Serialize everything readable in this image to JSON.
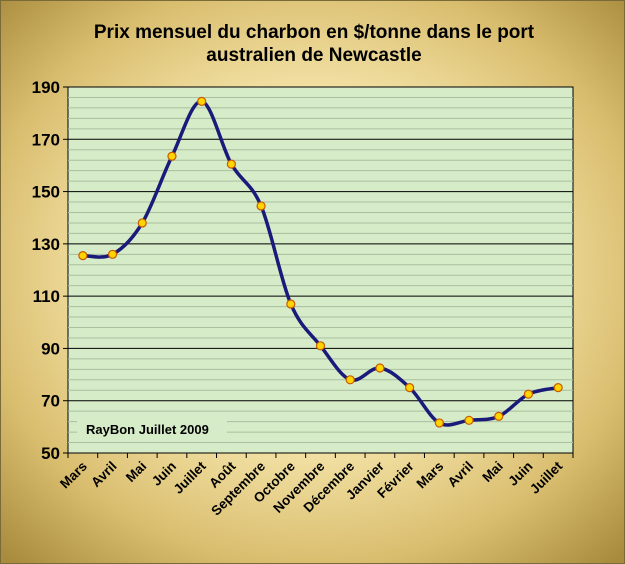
{
  "chart_data": {
    "type": "line",
    "title_lines": [
      "Prix mensuel du charbon en $/tonne dans le port",
      "australien de Newcastle"
    ],
    "categories": [
      "Mars",
      "Avril",
      "Mai",
      "Juin",
      "Juillet",
      "Août",
      "Septembre",
      "Octobre",
      "Novembre",
      "Décembre",
      "Janvier",
      "Février",
      "Mars",
      "Avril",
      "Mai",
      "Juin",
      "Juillet"
    ],
    "values": [
      125.5,
      126,
      138,
      163.5,
      184.5,
      160.5,
      144.5,
      107,
      91,
      78,
      82.5,
      75,
      61.5,
      62.5,
      64,
      72.5,
      75
    ],
    "yticks": [
      50,
      70,
      90,
      110,
      130,
      150,
      170,
      190
    ],
    "ylim": [
      50,
      190
    ],
    "annotation": "RayBon Juillet 2009",
    "grid": true,
    "colors": {
      "line": "#1a1a7a",
      "marker_fill": "#ffd400",
      "marker_stroke": "#c85a00",
      "plot_bg": "#d6ecc8",
      "major_grid": "#000000",
      "minor_grid": "#a8bfa0"
    }
  }
}
